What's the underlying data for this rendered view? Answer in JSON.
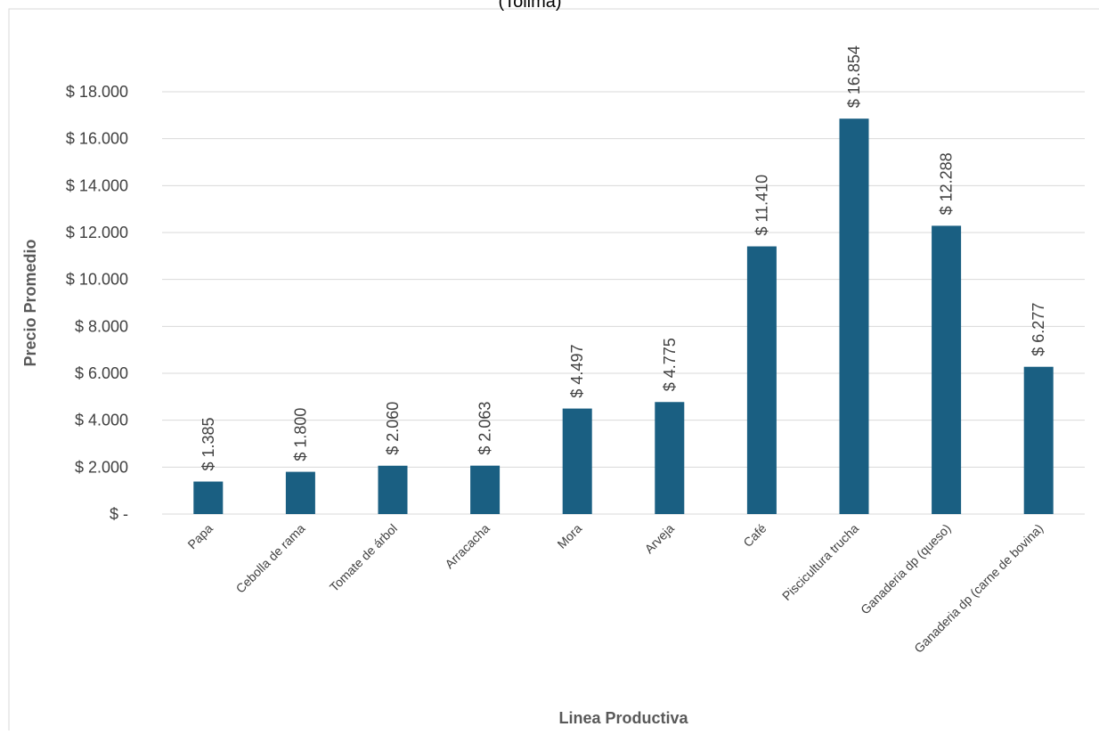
{
  "chart_data": {
    "type": "bar",
    "title": "(Tolima)",
    "xlabel": "Linea Productiva",
    "ylabel": "Precio Promedio",
    "categories": [
      "Papa",
      "Cebolla de rama",
      "Tomate de árbol",
      "Arracacha",
      "Mora",
      "Arveja",
      "Café",
      "Piscicultura trucha",
      "Ganaderia dp (queso)",
      "Ganaderia dp (carne de bovina)"
    ],
    "values": [
      1385,
      1800,
      2060,
      2063,
      4497,
      4775,
      11410,
      16854,
      12288,
      6277
    ],
    "data_labels": [
      "$ 1.385",
      "$ 1.800",
      "$ 2.060",
      "$ 2.063",
      "$ 4.497",
      "$ 4.775",
      "$ 11.410",
      "$ 16.854",
      "$ 12.288",
      "$ 6.277"
    ],
    "ylim": [
      0,
      18000
    ],
    "yticks": [
      0,
      2000,
      4000,
      6000,
      8000,
      10000,
      12000,
      14000,
      16000,
      18000
    ],
    "ytick_labels": [
      "$ -",
      "$ 2.000",
      "$ 4.000",
      "$ 6.000",
      "$ 8.000",
      "$ 10.000",
      "$ 12.000",
      "$ 14.000",
      "$ 16.000",
      "$ 18.000"
    ],
    "grid": true,
    "legend": "none",
    "bar_color": "#1a5f82",
    "grid_color": "#d9d9d9",
    "text_color": "#404040"
  }
}
